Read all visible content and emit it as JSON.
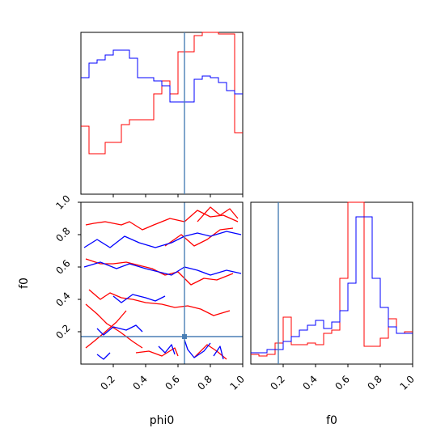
{
  "chart_data": {
    "type": "corner",
    "parameters": [
      "phi0",
      "f0"
    ],
    "xlabel": "phi0",
    "xlabel_right": "f0",
    "ylabel": "f0",
    "xlim": [
      0,
      1
    ],
    "ylim": [
      0,
      1
    ],
    "ticks": [
      0.2,
      0.4,
      0.6,
      0.8,
      1.0
    ],
    "tick_labels": [
      "0.2",
      "0.4",
      "0.6",
      "0.8",
      "1.0"
    ],
    "truths": {
      "phi0": 0.64,
      "f0": 0.17
    },
    "colors": {
      "series_a": "#ff0000",
      "series_b": "#0000ff",
      "truth": "#4a7fb5"
    },
    "hist_phi0": {
      "bins": 20,
      "series_a": [
        0.42,
        0.25,
        0.25,
        0.32,
        0.32,
        0.43,
        0.46,
        0.46,
        0.46,
        0.62,
        0.7,
        0.62,
        0.88,
        0.88,
        0.98,
        1.0,
        1.0,
        0.99,
        0.99,
        0.38
      ],
      "series_b": [
        0.72,
        0.81,
        0.83,
        0.86,
        0.89,
        0.89,
        0.84,
        0.72,
        0.72,
        0.7,
        0.67,
        0.57,
        0.57,
        0.57,
        0.71,
        0.73,
        0.72,
        0.69,
        0.64,
        0.62
      ]
    },
    "hist_f0": {
      "bins": 20,
      "series_a": [
        0.06,
        0.05,
        0.06,
        0.13,
        0.29,
        0.12,
        0.12,
        0.13,
        0.12,
        0.19,
        0.21,
        0.53,
        1.0,
        1.0,
        0.11,
        0.11,
        0.16,
        0.28,
        0.19,
        0.2
      ],
      "series_b": [
        0.07,
        0.07,
        0.09,
        0.09,
        0.14,
        0.17,
        0.21,
        0.24,
        0.27,
        0.22,
        0.26,
        0.33,
        0.5,
        0.91,
        0.91,
        0.53,
        0.35,
        0.23,
        0.19,
        0.19
      ]
    },
    "contours_2d": {
      "series_a": [
        [
          [
            0.03,
            0.86
          ],
          [
            0.08,
            0.87
          ],
          [
            0.15,
            0.88
          ],
          [
            0.25,
            0.86
          ],
          [
            0.3,
            0.88
          ],
          [
            0.38,
            0.83
          ],
          [
            0.45,
            0.86
          ],
          [
            0.55,
            0.9
          ],
          [
            0.64,
            0.88
          ],
          [
            0.72,
            0.95
          ],
          [
            0.8,
            0.91
          ],
          [
            0.88,
            0.92
          ],
          [
            0.97,
            0.88
          ]
        ],
        [
          [
            0.03,
            0.65
          ],
          [
            0.12,
            0.62
          ],
          [
            0.2,
            0.62
          ],
          [
            0.28,
            0.63
          ],
          [
            0.36,
            0.61
          ],
          [
            0.44,
            0.59
          ],
          [
            0.52,
            0.55
          ],
          [
            0.6,
            0.57
          ],
          [
            0.68,
            0.49
          ],
          [
            0.76,
            0.53
          ],
          [
            0.84,
            0.52
          ],
          [
            0.94,
            0.56
          ]
        ],
        [
          [
            0.05,
            0.46
          ],
          [
            0.12,
            0.4
          ],
          [
            0.18,
            0.44
          ],
          [
            0.25,
            0.41
          ],
          [
            0.32,
            0.4
          ],
          [
            0.4,
            0.38
          ],
          [
            0.5,
            0.37
          ],
          [
            0.58,
            0.35
          ],
          [
            0.66,
            0.36
          ],
          [
            0.74,
            0.34
          ],
          [
            0.82,
            0.3
          ],
          [
            0.92,
            0.33
          ]
        ],
        [
          [
            0.03,
            0.37
          ],
          [
            0.1,
            0.31
          ],
          [
            0.16,
            0.25
          ],
          [
            0.24,
            0.2
          ],
          [
            0.32,
            0.14
          ],
          [
            0.38,
            0.1
          ]
        ],
        [
          [
            0.03,
            0.1
          ],
          [
            0.08,
            0.14
          ],
          [
            0.14,
            0.19
          ],
          [
            0.22,
            0.26
          ],
          [
            0.28,
            0.33
          ]
        ],
        [
          [
            0.52,
            0.73
          ],
          [
            0.62,
            0.8
          ],
          [
            0.7,
            0.73
          ],
          [
            0.78,
            0.77
          ],
          [
            0.86,
            0.83
          ],
          [
            0.94,
            0.84
          ]
        ],
        [
          [
            0.34,
            0.07
          ],
          [
            0.42,
            0.08
          ],
          [
            0.5,
            0.05
          ],
          [
            0.58,
            0.1
          ],
          [
            0.6,
            0.05
          ]
        ],
        [
          [
            0.7,
            0.04
          ],
          [
            0.78,
            0.12
          ],
          [
            0.84,
            0.08
          ],
          [
            0.9,
            0.03
          ]
        ],
        [
          [
            0.72,
            0.88
          ],
          [
            0.8,
            0.97
          ],
          [
            0.86,
            0.92
          ],
          [
            0.92,
            0.96
          ],
          [
            0.97,
            0.9
          ]
        ]
      ],
      "series_b": [
        [
          [
            0.02,
            0.72
          ],
          [
            0.1,
            0.77
          ],
          [
            0.18,
            0.72
          ],
          [
            0.27,
            0.79
          ],
          [
            0.36,
            0.75
          ],
          [
            0.46,
            0.72
          ],
          [
            0.56,
            0.75
          ],
          [
            0.64,
            0.79
          ],
          [
            0.72,
            0.81
          ],
          [
            0.8,
            0.79
          ],
          [
            0.9,
            0.82
          ],
          [
            0.99,
            0.8
          ]
        ],
        [
          [
            0.02,
            0.6
          ],
          [
            0.12,
            0.63
          ],
          [
            0.22,
            0.59
          ],
          [
            0.3,
            0.62
          ],
          [
            0.4,
            0.59
          ],
          [
            0.48,
            0.57
          ],
          [
            0.56,
            0.55
          ],
          [
            0.64,
            0.6
          ],
          [
            0.72,
            0.58
          ],
          [
            0.8,
            0.55
          ],
          [
            0.9,
            0.58
          ],
          [
            0.99,
            0.56
          ]
        ],
        [
          [
            0.2,
            0.42
          ],
          [
            0.25,
            0.38
          ],
          [
            0.32,
            0.43
          ],
          [
            0.4,
            0.41
          ],
          [
            0.46,
            0.39
          ],
          [
            0.52,
            0.42
          ]
        ],
        [
          [
            0.1,
            0.22
          ],
          [
            0.14,
            0.18
          ],
          [
            0.2,
            0.23
          ],
          [
            0.28,
            0.21
          ],
          [
            0.34,
            0.24
          ],
          [
            0.38,
            0.2
          ]
        ],
        [
          [
            0.64,
            0.15
          ],
          [
            0.66,
            0.09
          ],
          [
            0.7,
            0.04
          ],
          [
            0.76,
            0.08
          ],
          [
            0.8,
            0.13
          ]
        ],
        [
          [
            0.48,
            0.11
          ],
          [
            0.52,
            0.07
          ],
          [
            0.56,
            0.12
          ],
          [
            0.58,
            0.06
          ]
        ],
        [
          [
            0.1,
            0.06
          ],
          [
            0.14,
            0.03
          ],
          [
            0.18,
            0.07
          ]
        ],
        [
          [
            0.82,
            0.05
          ],
          [
            0.86,
            0.11
          ],
          [
            0.88,
            0.03
          ]
        ]
      ]
    }
  }
}
